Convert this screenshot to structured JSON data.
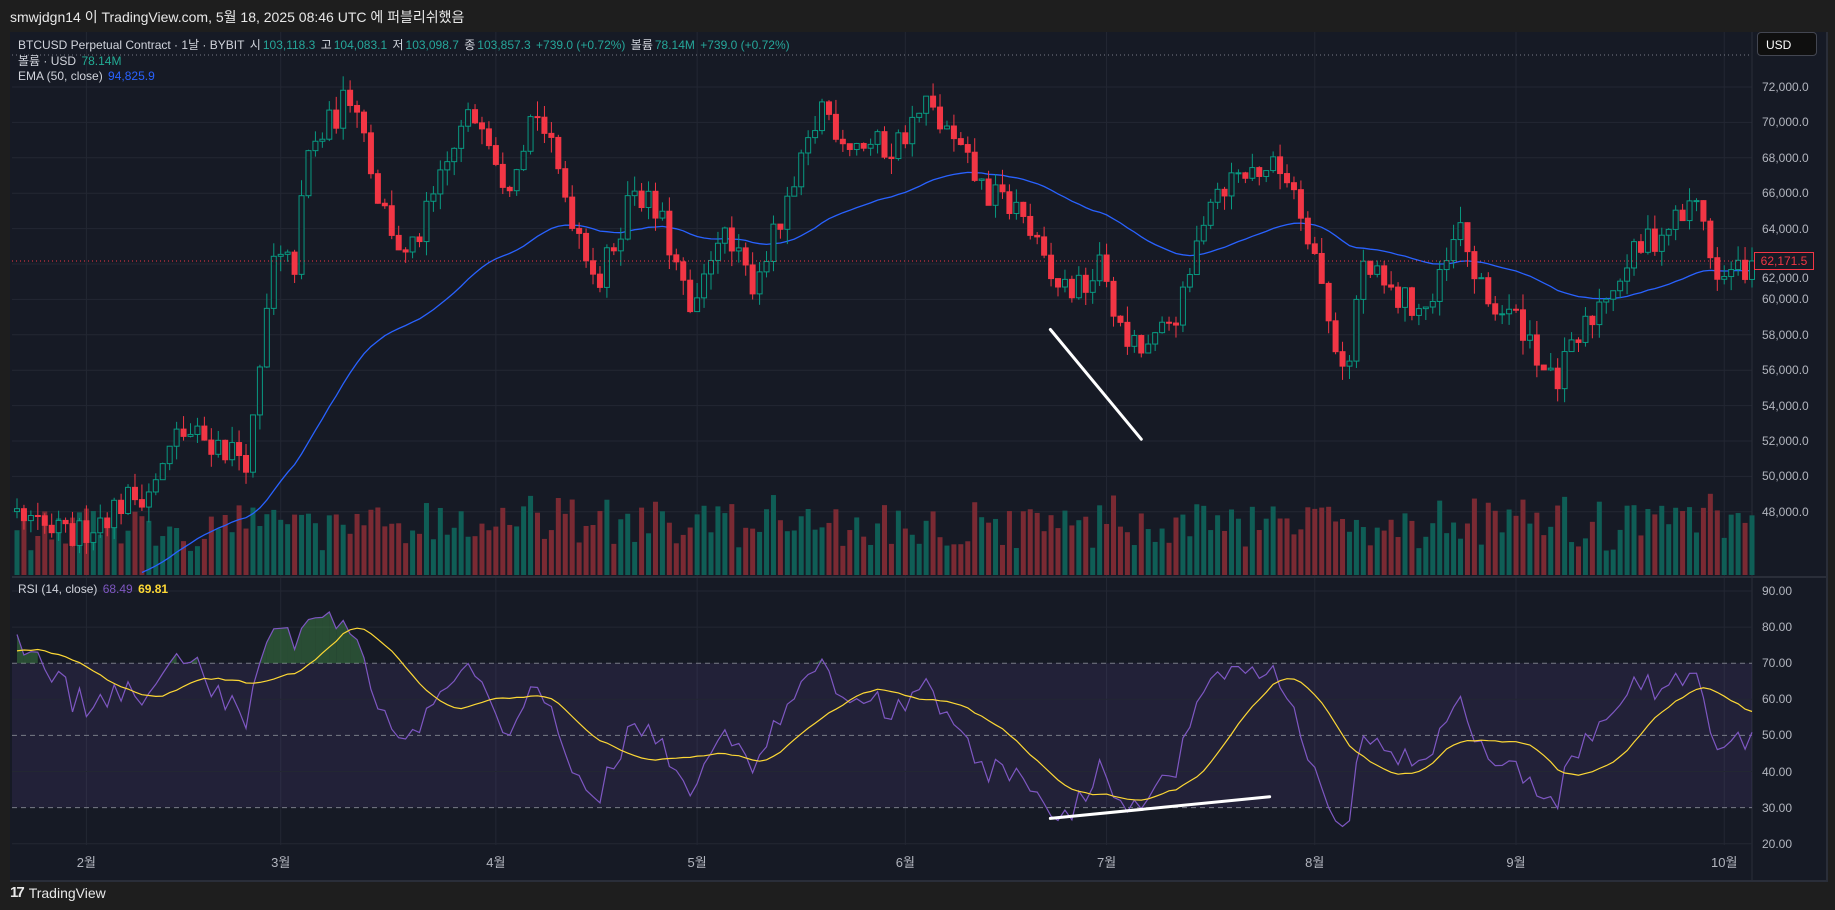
{
  "publish_line": "smwjdgn14 이 TradingView.com, 5월 18, 2025 08:46 UTC 에 퍼블리쉬했음",
  "legend": {
    "symbol": "BTCUSD Perpetual Contract · 1날 · BYBIT",
    "open_label": "시",
    "open": "103,118.3",
    "high_label": "고",
    "high": "104,083.1",
    "low_label": "저",
    "low": "103,098.7",
    "close_label": "종",
    "close": "103,857.3",
    "change": "+739.0 (+0.72%)",
    "volume_label": "볼륨",
    "volume": "78.14M",
    "change2": "+739.0 (+0.72%)",
    "vol_indicator": "볼륨 · USD",
    "vol_value": "78.14M",
    "ema_label": "EMA (50, close)",
    "ema_value": "94,825.9",
    "rsi_label": "RSI (14, close)",
    "rsi_value": "68.49",
    "rsi_ma_value": "69.81"
  },
  "currency_button": "USD",
  "last_price": "62,171.5",
  "footer_brand": "TradingView",
  "colors": {
    "up": "#089981",
    "down": "#f23645",
    "ema": "#2962ff",
    "rsi": "#7e57c2",
    "rsi_ma": "#fdd835"
  },
  "chart_data": {
    "type": "candlestick",
    "price_axis_ticks": [
      "72,000.0",
      "70,000.0",
      "68,000.0",
      "66,000.0",
      "64,000.0",
      "62,000.0",
      "60,000.0",
      "58,000.0",
      "56,000.0",
      "54,000.0",
      "52,000.0",
      "50,000.0",
      "48,000.0"
    ],
    "price_ticks_values": [
      72000,
      70000,
      68000,
      66000,
      64000,
      62000,
      60000,
      58000,
      56000,
      54000,
      52000,
      50000,
      48000
    ],
    "rsi_axis_ticks": [
      "90.00",
      "80.00",
      "70.00",
      "60.00",
      "50.00",
      "40.00",
      "30.00",
      "20.00"
    ],
    "rsi_ticks_values": [
      90,
      80,
      70,
      60,
      50,
      40,
      30,
      20
    ],
    "rsi_bands": [
      70,
      50,
      30
    ],
    "months": [
      {
        "label": "2월",
        "day": 10
      },
      {
        "label": "3월",
        "day": 38
      },
      {
        "label": "4월",
        "day": 69
      },
      {
        "label": "5월",
        "day": 98
      },
      {
        "label": "6월",
        "day": 128
      },
      {
        "label": "7월",
        "day": 157
      },
      {
        "label": "8월",
        "day": 187
      },
      {
        "label": "9월",
        "day": 216
      },
      {
        "label": "10월",
        "day": 246
      }
    ],
    "close_anchors_day_price": [
      [
        -45,
        36000
      ],
      [
        -20,
        40000
      ],
      [
        0,
        47500
      ],
      [
        8,
        46500
      ],
      [
        15,
        48500
      ],
      [
        19.9,
        49500
      ],
      [
        23.3,
        52500
      ],
      [
        28,
        52000
      ],
      [
        33.4,
        51000
      ],
      [
        35.1,
        56000
      ],
      [
        36.8,
        62000
      ],
      [
        40.1,
        62000
      ],
      [
        41.8,
        68000
      ],
      [
        48.6,
        72000
      ],
      [
        51.9,
        66000
      ],
      [
        56.2,
        62000
      ],
      [
        60.4,
        66000
      ],
      [
        64.6,
        70000
      ],
      [
        67.1,
        70500
      ],
      [
        70.5,
        66500
      ],
      [
        74.7,
        71000
      ],
      [
        79.8,
        65000
      ],
      [
        84,
        61000
      ],
      [
        89,
        66500
      ],
      [
        93.3,
        64000
      ],
      [
        97.5,
        58500
      ],
      [
        100.8,
        64000
      ],
      [
        105.9,
        61000
      ],
      [
        111,
        65000
      ],
      [
        116,
        71000
      ],
      [
        119.4,
        69000
      ],
      [
        126.1,
        68500
      ],
      [
        131.2,
        71000
      ],
      [
        134.6,
        69000
      ],
      [
        139.6,
        66000
      ],
      [
        144.7,
        65000
      ],
      [
        148.9,
        61000
      ],
      [
        153.1,
        60500
      ],
      [
        156.5,
        62000
      ],
      [
        159,
        58000
      ],
      [
        161.6,
        57000
      ],
      [
        164.1,
        57500
      ],
      [
        168.3,
        60000
      ],
      [
        171.7,
        66000
      ],
      [
        175.9,
        67000
      ],
      [
        180.1,
        67500
      ],
      [
        183.5,
        67000
      ],
      [
        186.8,
        63000
      ],
      [
        189.4,
        58000
      ],
      [
        191.9,
        56000
      ],
      [
        193.6,
        62000
      ],
      [
        198.7,
        60000
      ],
      [
        203.7,
        59500
      ],
      [
        207.9,
        64000
      ],
      [
        211.3,
        60000
      ],
      [
        217.2,
        58500
      ],
      [
        221.4,
        55000
      ],
      [
        224.8,
        57500
      ],
      [
        229,
        60500
      ],
      [
        234.1,
        63000
      ],
      [
        239.1,
        64500
      ],
      [
        242.5,
        65500
      ],
      [
        245,
        61000
      ],
      [
        247.6,
        61500
      ],
      [
        250,
        62171.5
      ]
    ],
    "bars": 251,
    "ema_period": 50,
    "rsi_period": 14,
    "rsi_ma_period": 14,
    "annotations": [
      {
        "pane": "price",
        "from": [
          148.9,
          58300
        ],
        "to": [
          162,
          52100
        ],
        "color": "#ffffff"
      },
      {
        "pane": "rsi",
        "from": [
          148.9,
          27
        ],
        "to": [
          180.5,
          33
        ],
        "color": "#ffffff"
      }
    ]
  }
}
